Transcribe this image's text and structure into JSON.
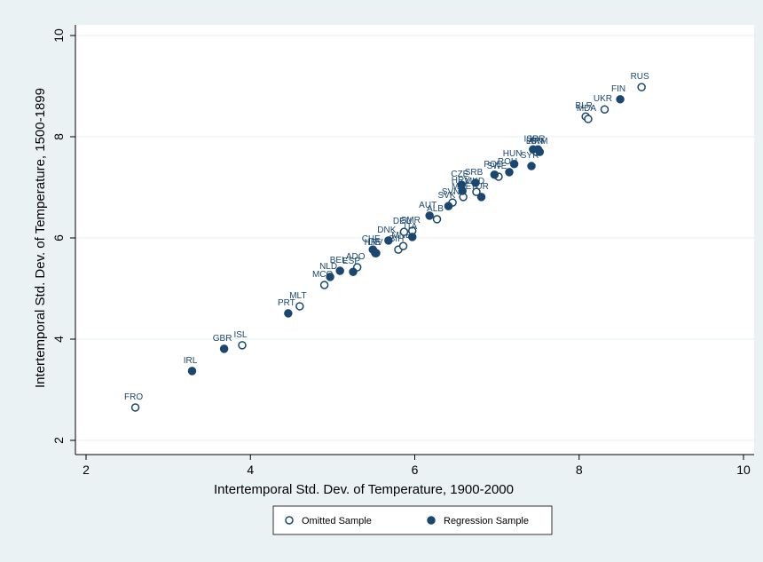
{
  "chart_data": {
    "type": "scatter",
    "x_label": "Intertemporal Std. Dev. of Temperature, 1900-2000",
    "y_label": "Intertemporal Std. Dev. of Temperature, 1500-1899",
    "xlim": [
      2,
      10
    ],
    "ylim": [
      2,
      10
    ],
    "xticks": [
      2,
      4,
      6,
      8,
      10
    ],
    "yticks": [
      2,
      4,
      6,
      8,
      10
    ],
    "grid": true,
    "legend": "bottom",
    "series": [
      {
        "name": "Omitted Sample",
        "color": "#1a476f",
        "marker": "hollow",
        "labels": [
          "FRO",
          "ISL",
          "MLT",
          "MCO",
          "ADO",
          "LIE",
          "BIH",
          "MNE",
          "DEU",
          "SMR",
          "ALB",
          "SVN",
          "MNE",
          "MKD",
          "SWE",
          "LBN",
          "BLR",
          "MDA",
          "UKR",
          "RUS"
        ],
        "x": [
          2.6,
          3.9,
          4.6,
          4.9,
          5.3,
          5.53,
          5.8,
          5.86,
          5.87,
          5.97,
          6.27,
          6.46,
          6.59,
          6.75,
          7.02,
          7.48,
          8.08,
          8.11,
          8.31,
          8.76
        ],
        "values": [
          2.65,
          3.88,
          4.65,
          5.07,
          5.42,
          5.7,
          5.77,
          5.84,
          6.12,
          6.14,
          6.37,
          6.7,
          6.81,
          6.91,
          7.21,
          7.7,
          8.4,
          8.35,
          8.54,
          8.98
        ]
      },
      {
        "name": "Regression Sample",
        "color": "#1a476f",
        "marker": "filled",
        "labels": [
          "IRL",
          "GBR",
          "PRT",
          "NLD",
          "BEL",
          "ESP",
          "CHE",
          "HRV",
          "DNK",
          "ITA",
          "AUT",
          "SVK",
          "HRV",
          "CZE",
          "SRB",
          "TUR",
          "POL",
          "ROU",
          "HUN",
          "SYR",
          "ISR",
          "JOR",
          "ARM",
          "FIN"
        ],
        "x": [
          3.29,
          3.68,
          4.46,
          4.97,
          5.09,
          5.25,
          5.49,
          5.52,
          5.68,
          5.97,
          6.18,
          6.41,
          6.58,
          6.57,
          6.74,
          6.81,
          6.97,
          7.15,
          7.21,
          7.42,
          7.44,
          7.5,
          7.52,
          8.5
        ],
        "values": [
          3.37,
          3.81,
          4.51,
          5.23,
          5.35,
          5.33,
          5.77,
          5.7,
          5.95,
          6.02,
          6.44,
          6.63,
          6.93,
          7.05,
          7.09,
          6.81,
          7.25,
          7.3,
          7.46,
          7.42,
          7.75,
          7.75,
          7.7,
          8.74
        ]
      }
    ]
  }
}
